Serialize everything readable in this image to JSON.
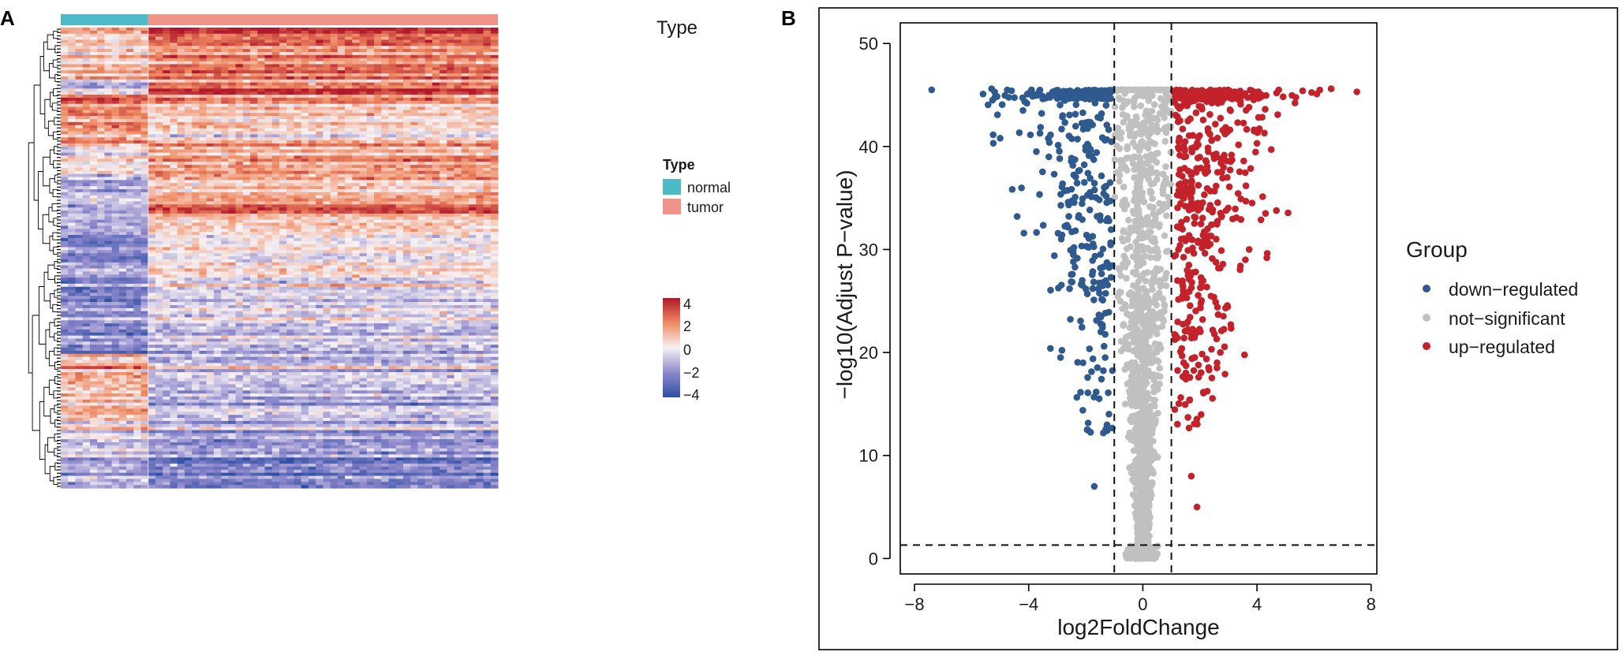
{
  "chart_data": [
    {
      "type": "heatmap",
      "panel": "A",
      "annotation_title": "Type",
      "legend_title": "Type",
      "legend_items": [
        {
          "label": "normal",
          "color": "#4DBBC6"
        },
        {
          "label": "tumor",
          "color": "#F0948A"
        }
      ],
      "column_groups": [
        {
          "name": "normal",
          "fraction": 0.2
        },
        {
          "name": "tumor",
          "fraction": 0.8
        }
      ],
      "colorbar": {
        "ticks": [
          "4",
          "2",
          "0",
          "−2",
          "−4"
        ],
        "range": [
          -4,
          4
        ],
        "colors": [
          "#B2182B",
          "#EF8A62",
          "#F7F2F4",
          "#8E88CC",
          "#2E4FA3"
        ]
      },
      "row_blocks": [
        {
          "rows": 6,
          "normal": 1.3,
          "tumor": 3.2
        },
        {
          "rows": 12,
          "normal": 0.8,
          "tumor": 2.2
        },
        {
          "rows": 4,
          "normal": -1.2,
          "tumor": 2.6
        },
        {
          "rows": 12,
          "normal": 2.0,
          "tumor": 0.9
        },
        {
          "rows": 4,
          "normal": 1.5,
          "tumor": 0.3
        },
        {
          "rows": 10,
          "normal": 0.1,
          "tumor": 1.4
        },
        {
          "rows": 10,
          "normal": -1.0,
          "tumor": 1.2
        },
        {
          "rows": 3,
          "normal": -1.8,
          "tumor": 2.6
        },
        {
          "rows": 16,
          "normal": -1.8,
          "tumor": 0.4
        },
        {
          "rows": 12,
          "normal": -2.2,
          "tumor": -0.4
        },
        {
          "rows": 8,
          "normal": -2.4,
          "tumor": -1.0
        },
        {
          "rows": 10,
          "normal": -2.6,
          "tumor": -1.5
        },
        {
          "rows": 12,
          "normal": 1.4,
          "tumor": -0.6
        },
        {
          "rows": 10,
          "normal": 0.9,
          "tumor": -1.2
        },
        {
          "rows": 6,
          "normal": -0.3,
          "tumor": -1.6
        },
        {
          "rows": 16,
          "normal": -1.2,
          "tumor": -2.2
        }
      ]
    },
    {
      "type": "scatter",
      "panel": "B",
      "xlabel": "log2FoldChange",
      "ylabel": "−log10(Adjust P−value)",
      "xlim": [
        -8.5,
        8.2
      ],
      "ylim": [
        -1.5,
        52
      ],
      "xticks": [
        -8,
        -4,
        0,
        4,
        8
      ],
      "xtick_labels": [
        "−8",
        "−4",
        "0",
        "4",
        "8"
      ],
      "yticks": [
        0,
        10,
        20,
        30,
        40,
        50
      ],
      "ytick_labels": [
        "0",
        "10",
        "20",
        "30",
        "40",
        "50"
      ],
      "thresholds": {
        "fc": [
          -1,
          1
        ],
        "padj": 1.3
      },
      "legend_title": "Group",
      "groups": [
        {
          "name": "down−regulated",
          "color": "#2F5A8F"
        },
        {
          "name": "not−significant",
          "color": "#C0C0C0"
        },
        {
          "name": "up−regulated",
          "color": "#C4222B"
        }
      ],
      "highlight_points": [
        {
          "x": -7.4,
          "y": 45.5,
          "group": 0
        },
        {
          "x": -5.6,
          "y": 45.1,
          "group": 0
        },
        {
          "x": -5.3,
          "y": 45.6,
          "group": 0
        },
        {
          "x": -5.0,
          "y": 40.8,
          "group": 0
        },
        {
          "x": -4.6,
          "y": 45.4,
          "group": 0
        },
        {
          "x": -4.2,
          "y": 43.5,
          "group": 0
        },
        {
          "x": -3.9,
          "y": 45.5,
          "group": 0
        },
        {
          "x": -1.7,
          "y": 7.0,
          "group": 0
        },
        {
          "x": -1.95,
          "y": 12.5,
          "group": 0
        },
        {
          "x": 7.5,
          "y": 45.3,
          "group": 2
        },
        {
          "x": 6.6,
          "y": 45.6,
          "group": 2
        },
        {
          "x": 6.1,
          "y": 45.1,
          "group": 2
        },
        {
          "x": 5.6,
          "y": 45.4,
          "group": 2
        },
        {
          "x": 4.5,
          "y": 39.7,
          "group": 2
        },
        {
          "x": 4.3,
          "y": 33.5,
          "group": 2
        },
        {
          "x": 3.9,
          "y": 41.5,
          "group": 2
        },
        {
          "x": 2.6,
          "y": 19.0,
          "group": 2
        },
        {
          "x": 1.9,
          "y": 5.0,
          "group": 2
        },
        {
          "x": 1.7,
          "y": 8.0,
          "group": 2
        }
      ],
      "simulated_counts": {
        "down": 380,
        "not_significant": 1400,
        "up": 560
      }
    }
  ],
  "panels": {
    "a_label": "A",
    "b_label": "B"
  }
}
